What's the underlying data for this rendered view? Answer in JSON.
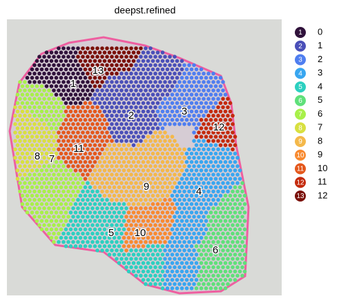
{
  "chart_data": {
    "type": "spatial",
    "title": "deepst.refined",
    "clusters": [
      {
        "marker": "1",
        "name": "0",
        "color": "#30123b"
      },
      {
        "marker": "2",
        "name": "1",
        "color": "#4a4fb8"
      },
      {
        "marker": "3",
        "name": "2",
        "color": "#4f7ef0"
      },
      {
        "marker": "4",
        "name": "3",
        "color": "#38a6f0"
      },
      {
        "marker": "5",
        "name": "4",
        "color": "#2cd0c0"
      },
      {
        "marker": "6",
        "name": "5",
        "color": "#5fe07a"
      },
      {
        "marker": "7",
        "name": "6",
        "color": "#a8f04a"
      },
      {
        "marker": "8",
        "name": "7",
        "color": "#d8e040"
      },
      {
        "marker": "9",
        "name": "8",
        "color": "#f4b84a"
      },
      {
        "marker": "10",
        "name": "9",
        "color": "#f88a30"
      },
      {
        "marker": "11",
        "name": "10",
        "color": "#e4581c"
      },
      {
        "marker": "12",
        "name": "11",
        "color": "#c42a0c"
      },
      {
        "marker": "13",
        "name": "12",
        "color": "#7a1008"
      }
    ]
  }
}
